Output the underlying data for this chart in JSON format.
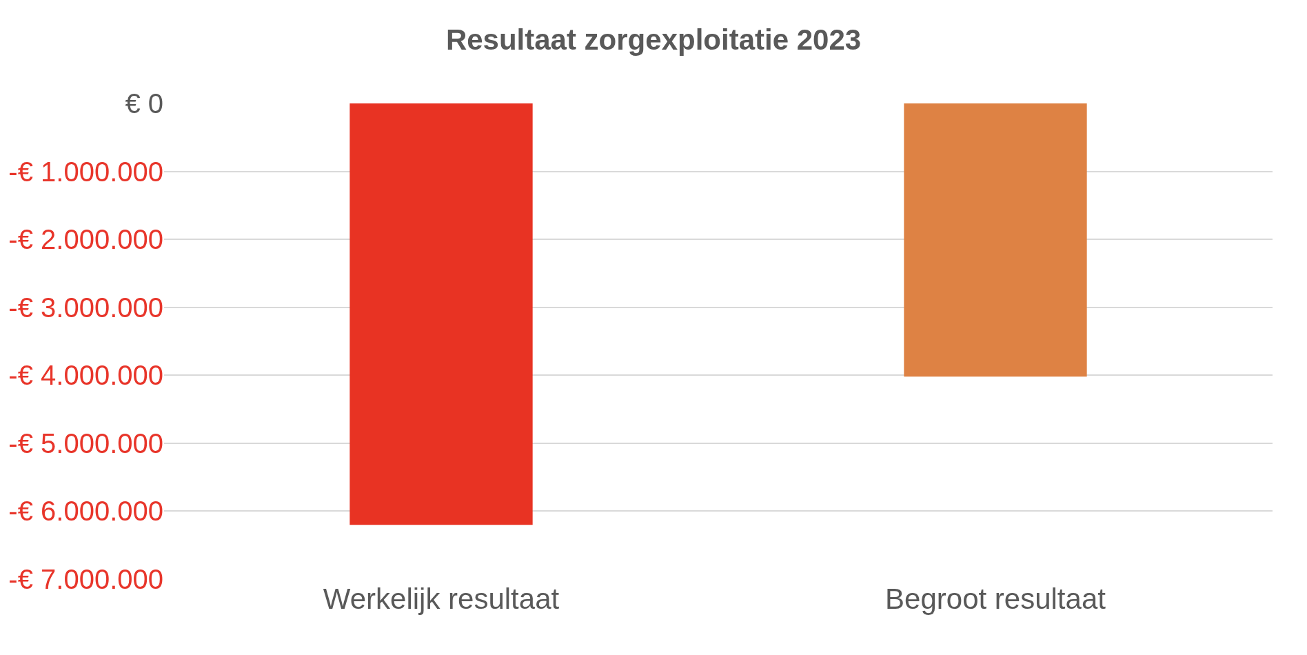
{
  "chart_data": {
    "type": "bar",
    "title": "Resultaat zorgexploitatie 2023",
    "categories": [
      "Werkelijk resultaat",
      "Begroot resultaat"
    ],
    "values": [
      -6200000,
      -4020000
    ],
    "colors": [
      "#e83323",
      "#de8244"
    ],
    "ylim": [
      -7000000,
      0
    ],
    "yticks": [
      {
        "value": 0,
        "label": "€ 0"
      },
      {
        "value": -1000000,
        "label": "-€ 1.000.000"
      },
      {
        "value": -2000000,
        "label": "-€ 2.000.000"
      },
      {
        "value": -3000000,
        "label": "-€ 3.000.000"
      },
      {
        "value": -4000000,
        "label": "-€ 4.000.000"
      },
      {
        "value": -5000000,
        "label": "-€ 5.000.000"
      },
      {
        "value": -6000000,
        "label": "-€ 6.000.000"
      },
      {
        "value": -7000000,
        "label": "-€ 7.000.000"
      }
    ],
    "grid": "y",
    "legend": false
  }
}
